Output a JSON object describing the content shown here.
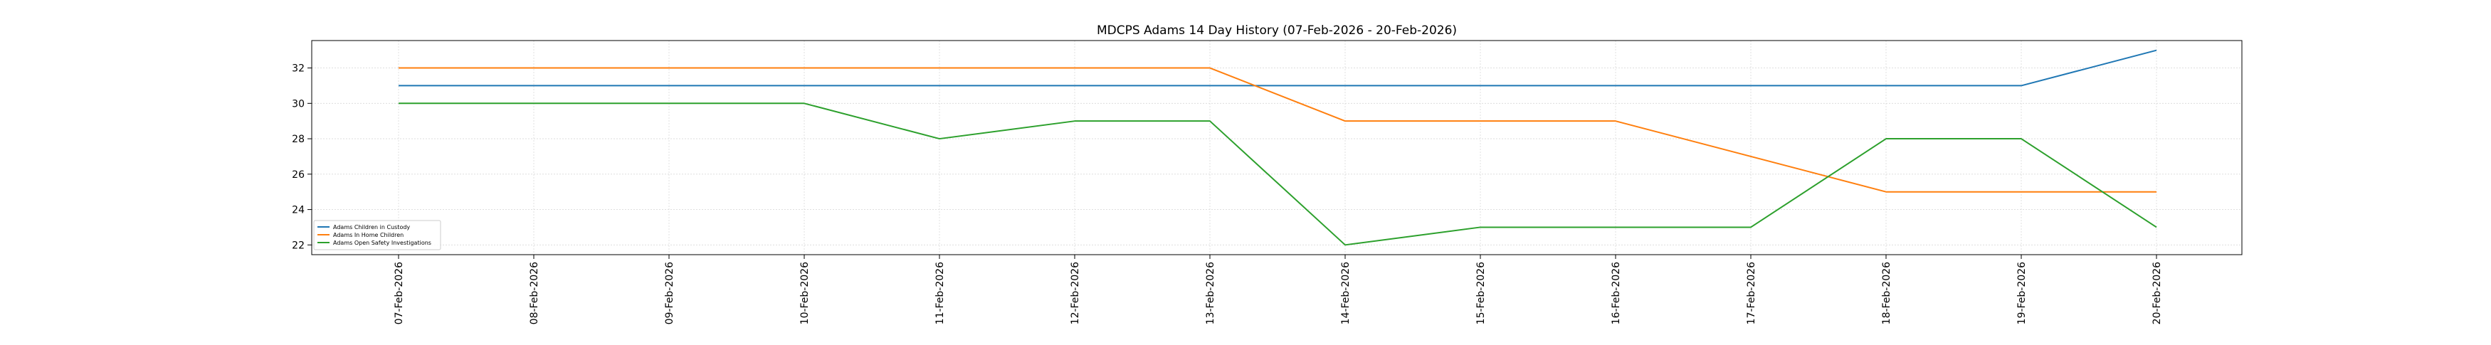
{
  "chart_data": {
    "type": "line",
    "title": "MDCPS Adams 14 Day History (07-Feb-2026 - 20-Feb-2026)",
    "xlabel": "",
    "ylabel": "",
    "categories": [
      "07-Feb-2026",
      "08-Feb-2026",
      "09-Feb-2026",
      "10-Feb-2026",
      "11-Feb-2026",
      "12-Feb-2026",
      "13-Feb-2026",
      "14-Feb-2026",
      "15-Feb-2026",
      "16-Feb-2026",
      "17-Feb-2026",
      "18-Feb-2026",
      "19-Feb-2026",
      "20-Feb-2026"
    ],
    "y_ticks": [
      22,
      24,
      26,
      28,
      30,
      32
    ],
    "ylim": [
      21.45,
      33.55
    ],
    "grid": true,
    "legend_position": "lower-left",
    "series": [
      {
        "name": "Adams Children in Custody",
        "color": "#1f77b4",
        "values": [
          31,
          31,
          31,
          31,
          31,
          31,
          31,
          31,
          31,
          31,
          31,
          31,
          31,
          33
        ]
      },
      {
        "name": "Adams In Home Children",
        "color": "#ff7f0e",
        "values": [
          32,
          32,
          32,
          32,
          32,
          32,
          32,
          29,
          29,
          29,
          27,
          25,
          25,
          25
        ]
      },
      {
        "name": "Adams Open Safety Investigations",
        "color": "#2ca02c",
        "values": [
          30,
          30,
          30,
          30,
          28,
          29,
          29,
          22,
          23,
          23,
          23,
          28,
          28,
          23
        ]
      }
    ]
  }
}
